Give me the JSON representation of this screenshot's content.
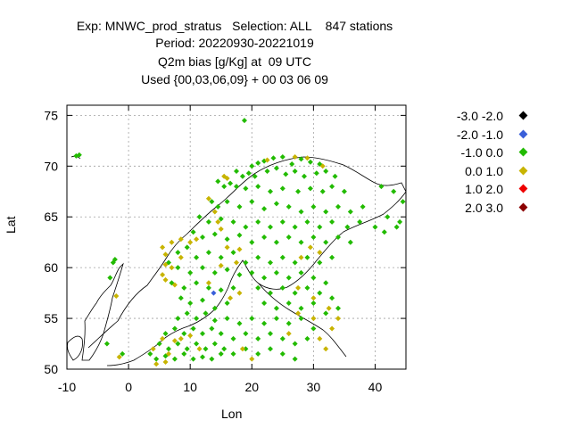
{
  "header": {
    "line1": "Exp: MNWC_prod_stratus   Selection: ALL    847 stations",
    "line2": "Period: 20220930-20221019",
    "line3": "Q2m bias [g/Kg] at  09 UTC",
    "line4": "Used {00,03,06,09} + 00 03 06 09"
  },
  "colors": {
    "bin1": "#000000",
    "bin2": "#3a5fd9",
    "bin3": "#22bb00",
    "bin4": "#c8b400",
    "bin5": "#ee0000",
    "bin6": "#8b0000",
    "coast": "#000000",
    "grid": "#a0a0a0"
  },
  "chart_data": {
    "type": "scatter",
    "xlabel": "Lon",
    "ylabel": "Lat",
    "xlim": [
      -10,
      45
    ],
    "ylim": [
      50,
      76
    ],
    "xticks": [
      -10,
      0,
      10,
      20,
      30,
      40
    ],
    "yticks": [
      50,
      55,
      60,
      65,
      70,
      75
    ],
    "grid": true,
    "legend_position": "right",
    "legend": [
      {
        "label": "-3.0 -2.0",
        "color_key": "bin1"
      },
      {
        "label": "-2.0 -1.0",
        "color_key": "bin2"
      },
      {
        "label": "-1.0 0.0",
        "color_key": "bin3"
      },
      {
        "label": "0.0 1.0",
        "color_key": "bin4"
      },
      {
        "label": "1.0 2.0",
        "color_key": "bin5"
      },
      {
        "label": "2.0 3.0",
        "color_key": "bin6"
      }
    ],
    "series": [
      {
        "name": "-2.0 -1.0",
        "color_key": "bin2",
        "points": [
          [
            13.8,
            57.5
          ]
        ]
      },
      {
        "name": "-1.0 0.0",
        "color_key": "bin3",
        "points": [
          [
            -8.5,
            71.0
          ],
          [
            -8.0,
            71.1
          ],
          [
            -2.5,
            60.5
          ],
          [
            -2.2,
            60.8
          ],
          [
            -3.0,
            59.0
          ],
          [
            -3.5,
            52.5
          ],
          [
            -1.0,
            51.5
          ],
          [
            18.8,
            74.5
          ],
          [
            20.0,
            70.0
          ],
          [
            21.0,
            70.3
          ],
          [
            22.0,
            70.5
          ],
          [
            23.5,
            70.8
          ],
          [
            25.0,
            70.9
          ],
          [
            26.5,
            70.2
          ],
          [
            28.0,
            70.7
          ],
          [
            29.5,
            70.4
          ],
          [
            31.0,
            70.2
          ],
          [
            17.5,
            69.5
          ],
          [
            18.5,
            69.0
          ],
          [
            19.5,
            69.3
          ],
          [
            20.5,
            69.0
          ],
          [
            22.5,
            69.5
          ],
          [
            24.0,
            69.8
          ],
          [
            25.5,
            69.2
          ],
          [
            27.0,
            69.5
          ],
          [
            28.5,
            69.0
          ],
          [
            30.5,
            69.3
          ],
          [
            32.0,
            69.5
          ],
          [
            33.5,
            69.0
          ],
          [
            14.5,
            68.5
          ],
          [
            15.5,
            68.0
          ],
          [
            16.5,
            68.3
          ],
          [
            17.5,
            68.0
          ],
          [
            19.0,
            67.8
          ],
          [
            21.0,
            68.0
          ],
          [
            23.0,
            67.5
          ],
          [
            25.0,
            67.8
          ],
          [
            27.5,
            67.5
          ],
          [
            29.5,
            67.8
          ],
          [
            31.5,
            67.5
          ],
          [
            33.0,
            68.0
          ],
          [
            35.0,
            67.5
          ],
          [
            13.5,
            66.5
          ],
          [
            14.5,
            66.0
          ],
          [
            16.0,
            66.5
          ],
          [
            18.0,
            66.0
          ],
          [
            20.0,
            66.5
          ],
          [
            22.0,
            65.8
          ],
          [
            24.0,
            66.3
          ],
          [
            26.0,
            66.0
          ],
          [
            28.0,
            65.5
          ],
          [
            30.0,
            66.0
          ],
          [
            32.0,
            65.5
          ],
          [
            34.0,
            66.0
          ],
          [
            36.0,
            65.5
          ],
          [
            38.0,
            66.0
          ],
          [
            11.5,
            65.0
          ],
          [
            13.0,
            64.5
          ],
          [
            15.0,
            64.8
          ],
          [
            17.0,
            64.5
          ],
          [
            19.0,
            64.0
          ],
          [
            21.0,
            64.5
          ],
          [
            23.0,
            64.0
          ],
          [
            25.0,
            64.5
          ],
          [
            27.0,
            64.0
          ],
          [
            29.0,
            64.5
          ],
          [
            31.0,
            64.0
          ],
          [
            33.0,
            64.5
          ],
          [
            35.5,
            64.0
          ],
          [
            37.5,
            64.5
          ],
          [
            40.0,
            64.0
          ],
          [
            42.0,
            65.0
          ],
          [
            44.0,
            64.5
          ],
          [
            10.5,
            63.5
          ],
          [
            12.0,
            63.0
          ],
          [
            14.0,
            63.3
          ],
          [
            16.0,
            62.8
          ],
          [
            18.0,
            63.2
          ],
          [
            20.0,
            62.5
          ],
          [
            22.0,
            63.0
          ],
          [
            24.0,
            62.5
          ],
          [
            26.0,
            63.0
          ],
          [
            28.0,
            62.5
          ],
          [
            30.0,
            63.0
          ],
          [
            32.0,
            62.5
          ],
          [
            34.0,
            63.0
          ],
          [
            36.0,
            62.5
          ],
          [
            8.0,
            61.5
          ],
          [
            9.5,
            62.0
          ],
          [
            11.0,
            61.0
          ],
          [
            13.0,
            61.5
          ],
          [
            15.0,
            61.0
          ],
          [
            17.0,
            61.5
          ],
          [
            19.0,
            60.5
          ],
          [
            21.0,
            61.0
          ],
          [
            23.0,
            60.5
          ],
          [
            25.0,
            61.0
          ],
          [
            27.0,
            60.5
          ],
          [
            29.0,
            61.0
          ],
          [
            31.0,
            60.5
          ],
          [
            33.0,
            61.0
          ],
          [
            6.5,
            60.5
          ],
          [
            8.0,
            60.0
          ],
          [
            10.0,
            59.5
          ],
          [
            12.0,
            60.0
          ],
          [
            14.0,
            59.5
          ],
          [
            16.0,
            59.8
          ],
          [
            18.0,
            59.3
          ],
          [
            20.0,
            59.5
          ],
          [
            22.0,
            59.0
          ],
          [
            24.0,
            59.5
          ],
          [
            26.0,
            59.0
          ],
          [
            28.0,
            59.5
          ],
          [
            30.0,
            59.0
          ],
          [
            32.0,
            58.5
          ],
          [
            7.0,
            58.5
          ],
          [
            9.0,
            58.0
          ],
          [
            11.0,
            58.5
          ],
          [
            13.0,
            58.0
          ],
          [
            15.0,
            57.8
          ],
          [
            17.0,
            58.0
          ],
          [
            21.0,
            58.0
          ],
          [
            23.0,
            57.5
          ],
          [
            25.0,
            58.0
          ],
          [
            27.0,
            57.5
          ],
          [
            29.0,
            58.0
          ],
          [
            31.0,
            57.5
          ],
          [
            33.0,
            57.0
          ],
          [
            8.5,
            57.0
          ],
          [
            10.0,
            56.5
          ],
          [
            12.0,
            56.8
          ],
          [
            14.0,
            56.0
          ],
          [
            16.0,
            56.5
          ],
          [
            22.0,
            56.5
          ],
          [
            24.0,
            56.0
          ],
          [
            26.0,
            56.5
          ],
          [
            28.0,
            56.0
          ],
          [
            30.0,
            56.5
          ],
          [
            32.0,
            55.5
          ],
          [
            34.0,
            56.0
          ],
          [
            8.0,
            55.0
          ],
          [
            9.5,
            55.5
          ],
          [
            11.0,
            55.0
          ],
          [
            12.5,
            55.5
          ],
          [
            14.0,
            54.8
          ],
          [
            16.0,
            55.0
          ],
          [
            18.0,
            54.5
          ],
          [
            20.0,
            55.0
          ],
          [
            22.0,
            54.5
          ],
          [
            24.0,
            55.0
          ],
          [
            26.0,
            54.5
          ],
          [
            28.0,
            55.0
          ],
          [
            30.0,
            54.0
          ],
          [
            6.0,
            53.5
          ],
          [
            7.5,
            54.0
          ],
          [
            9.0,
            53.5
          ],
          [
            10.5,
            54.0
          ],
          [
            12.0,
            53.5
          ],
          [
            13.5,
            54.0
          ],
          [
            15.0,
            53.5
          ],
          [
            17.0,
            53.0
          ],
          [
            19.0,
            53.5
          ],
          [
            21.0,
            53.0
          ],
          [
            23.0,
            53.5
          ],
          [
            25.0,
            53.0
          ],
          [
            27.0,
            52.5
          ],
          [
            29.0,
            53.0
          ],
          [
            5.0,
            52.5
          ],
          [
            6.5,
            52.0
          ],
          [
            8.0,
            52.5
          ],
          [
            9.5,
            52.0
          ],
          [
            11.0,
            52.5
          ],
          [
            12.5,
            52.0
          ],
          [
            14.0,
            52.5
          ],
          [
            15.5,
            52.0
          ],
          [
            17.0,
            51.5
          ],
          [
            19.0,
            52.0
          ],
          [
            21.0,
            51.5
          ],
          [
            23.0,
            52.0
          ],
          [
            25.0,
            51.5
          ],
          [
            27.0,
            51.0
          ],
          [
            3.5,
            51.5
          ],
          [
            4.5,
            51.0
          ],
          [
            6.0,
            51.3
          ],
          [
            7.5,
            51.0
          ],
          [
            9.0,
            51.5
          ],
          [
            10.5,
            51.0
          ],
          [
            12.0,
            51.2
          ],
          [
            13.5,
            51.0
          ],
          [
            15.0,
            51.5
          ],
          [
            41.0,
            68.0
          ],
          [
            43.0,
            67.5
          ],
          [
            44.5,
            66.5
          ],
          [
            43.5,
            64.0
          ],
          [
            41.5,
            63.5
          ]
        ]
      },
      {
        "name": "0.0 1.0",
        "color_key": "bin4",
        "points": [
          [
            -2.0,
            57.2
          ],
          [
            -1.5,
            51.2
          ],
          [
            15.5,
            69.0
          ],
          [
            16.0,
            68.8
          ],
          [
            22.5,
            70.6
          ],
          [
            27.0,
            70.9
          ],
          [
            29.0,
            70.8
          ],
          [
            31.5,
            70.0
          ],
          [
            13.0,
            66.8
          ],
          [
            14.0,
            65.5
          ],
          [
            14.5,
            64.5
          ],
          [
            15.0,
            63.8
          ],
          [
            5.5,
            62.0
          ],
          [
            6.0,
            61.3
          ],
          [
            7.0,
            62.5
          ],
          [
            8.5,
            62.8
          ],
          [
            6.0,
            60.3
          ],
          [
            7.0,
            60.0
          ],
          [
            5.5,
            59.3
          ],
          [
            6.0,
            58.8
          ],
          [
            7.5,
            58.3
          ],
          [
            8.5,
            61.0
          ],
          [
            10.0,
            62.5
          ],
          [
            11.0,
            62.8
          ],
          [
            16.0,
            62.0
          ],
          [
            18.0,
            61.8
          ],
          [
            15.0,
            60.2
          ],
          [
            17.5,
            60.5
          ],
          [
            13.0,
            58.5
          ],
          [
            16.5,
            57.0
          ],
          [
            18.0,
            57.5
          ],
          [
            28.0,
            61.0
          ],
          [
            29.5,
            62.0
          ],
          [
            31.0,
            61.5
          ],
          [
            27.5,
            58.0
          ],
          [
            30.0,
            57.0
          ],
          [
            4.0,
            52.0
          ],
          [
            5.5,
            53.0
          ],
          [
            6.5,
            51.5
          ],
          [
            7.5,
            52.8
          ],
          [
            8.5,
            53.0
          ],
          [
            10.0,
            53.3
          ],
          [
            11.5,
            52.0
          ],
          [
            4.5,
            50.5
          ],
          [
            6.0,
            50.7
          ],
          [
            18.5,
            52.0
          ],
          [
            20.0,
            51.0
          ],
          [
            26.0,
            53.5
          ],
          [
            27.5,
            55.5
          ],
          [
            30.0,
            55.0
          ],
          [
            31.0,
            53.0
          ],
          [
            32.0,
            52.0
          ],
          [
            33.0,
            54.0
          ],
          [
            34.0,
            55.0
          ],
          [
            32.5,
            56.0
          ]
        ]
      }
    ]
  }
}
